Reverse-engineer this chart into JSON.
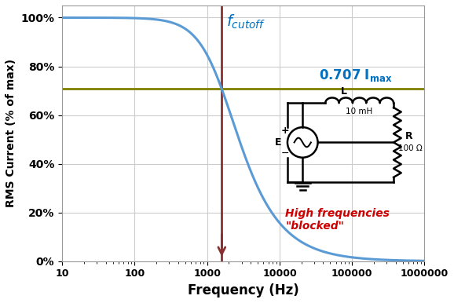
{
  "title": "",
  "xlabel": "Frequency (Hz)",
  "ylabel": "RMS Current (% of max)",
  "cutoff_freq": 1591.5,
  "R": 100,
  "L": 0.01,
  "horizontal_line_y": 0.707,
  "curve_color": "#5B9BD5",
  "hline_color": "#808000",
  "vline_color": "#8B3030",
  "annotation_color_blue": "#0070C0",
  "annotation_color_red": "#CC0000",
  "background_color": "#FFFFFF",
  "grid_color": "#CCCCCC",
  "yticks": [
    0,
    0.2,
    0.4,
    0.6,
    0.8,
    1.0
  ],
  "ytick_labels": [
    "0%",
    "20%",
    "40%",
    "60%",
    "80%",
    "100%"
  ],
  "xtick_vals": [
    10,
    100,
    1000,
    10000,
    100000,
    1000000
  ],
  "xtick_labels": [
    "10",
    "100",
    "1000",
    "10000",
    "100000",
    "1000000"
  ]
}
